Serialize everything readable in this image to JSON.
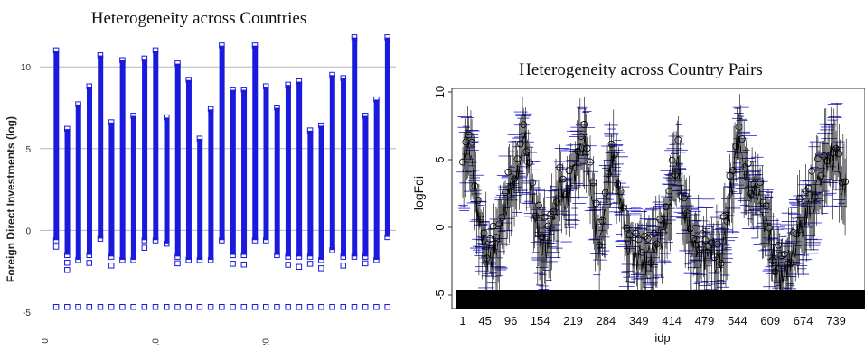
{
  "charts": {
    "left": {
      "title": "Heterogeneity across Countries",
      "ylabel": "Foreign Direct Investments (log)",
      "y_ticks": [
        -5,
        0,
        5,
        10
      ],
      "x_ticks": [
        0,
        10,
        20
      ],
      "marker_color": "#1a1adc"
    },
    "right": {
      "title": "Heterogeneity across Country Pairs",
      "ylabel": "logFdi",
      "xlabel": "idp",
      "y_ticks": [
        -5,
        0,
        5,
        10
      ],
      "x_ticks": [
        1,
        45,
        96,
        154,
        219,
        284,
        349,
        414,
        479,
        544,
        609,
        674,
        739
      ],
      "mean_color": "#000000",
      "spread_color": "#2020c8"
    }
  },
  "chart_data": [
    {
      "type": "scatter",
      "title": "Heterogeneity across Countries",
      "xlabel": "",
      "ylabel": "Foreign Direct Investments (log)",
      "xlim": [
        -0.5,
        31.5
      ],
      "ylim": [
        -5.5,
        12
      ],
      "grid": "horizontal",
      "series": [
        {
          "x": [
            1,
            2,
            3,
            4,
            5,
            6,
            7,
            8,
            9,
            10,
            11,
            12,
            13,
            14,
            15,
            16,
            17,
            18,
            19,
            20,
            21,
            22,
            23,
            24,
            25,
            26,
            27,
            28,
            29,
            30,
            31
          ],
          "min": [
            -1,
            -2.5,
            -2.2,
            -2.2,
            -0.5,
            -2.2,
            -2.3,
            -2.2,
            -1.5,
            -0.7,
            -1,
            -2.4,
            -2.2,
            -2.4,
            -2.3,
            -1,
            -2.2,
            -2.2,
            -1,
            -0.8,
            -1.6,
            -2.3,
            -2.3,
            -2.3,
            -2.4,
            -1.8,
            -2.3,
            -2.2,
            -2.3,
            -2.3,
            -0.5
          ],
          "max": [
            11,
            6.2,
            7.7,
            8.8,
            10.7,
            6.6,
            10.4,
            7,
            10.5,
            11,
            6.9,
            10.2,
            9.2,
            5.6,
            7.4,
            11.3,
            8.6,
            8.6,
            11.3,
            8.8,
            7.5,
            8.9,
            9.1,
            6.1,
            6.4,
            9.5,
            9.3,
            11.8,
            7,
            8,
            11.8
          ],
          "dense_above": [
            -0.6,
            -1.5,
            -1.8,
            -1.5,
            -0.5,
            -1.6,
            -1.8,
            -1.8,
            -0.6,
            -0.6,
            -0.8,
            -1.6,
            -1.8,
            -1.8,
            -1.8,
            -0.6,
            -1.5,
            -1.5,
            -0.6,
            -0.6,
            -1.5,
            -1.6,
            -1.6,
            -1.6,
            -1.8,
            -1.2,
            -1.6,
            -1.6,
            -1.6,
            -1.8,
            -0.4
          ],
          "floor": -4.7
        }
      ]
    },
    {
      "type": "line",
      "title": "Heterogeneity across Country Pairs",
      "xlabel": "idp",
      "ylabel": "logFdi",
      "xlim": [
        -10,
        770
      ],
      "ylim": [
        -5.6,
        11
      ],
      "x_ticks": [
        1,
        45,
        96,
        154,
        219,
        284,
        349,
        414,
        479,
        544,
        609,
        674,
        739
      ],
      "series": [
        {
          "name": "",
          "x": [
            1,
            10,
            20,
            30,
            40,
            50,
            60,
            70,
            80,
            96,
            110,
            125,
            140,
            154,
            165,
            180,
            195,
            205,
            219,
            230,
            245,
            260,
            270,
            284,
            295,
            310,
            325,
            340,
            349,
            360,
            375,
            390,
            400,
            414,
            425,
            440,
            455,
            470,
            479,
            490,
            505,
            520,
            530,
            544,
            555,
            570,
            585,
            600,
            609,
            620,
            635,
            650,
            660,
            674,
            685,
            700,
            715,
            730,
            739,
            750
          ],
          "y": [
            4,
            6,
            5,
            1,
            -1,
            -2.5,
            -2,
            -1,
            1,
            3,
            4.5,
            6,
            2,
            -1,
            -2,
            1,
            3,
            2,
            4,
            5,
            6,
            1,
            -2,
            2,
            5,
            3,
            -1,
            -2,
            -2,
            -3,
            -2,
            -1,
            0,
            3,
            5,
            1,
            -1,
            -2,
            -2,
            -1,
            -3,
            -1,
            2,
            6,
            5,
            3,
            2,
            0,
            -1,
            -3,
            -4,
            -2,
            -1,
            0,
            1,
            3,
            4,
            5,
            6,
            3
          ]
        }
      ]
    }
  ]
}
